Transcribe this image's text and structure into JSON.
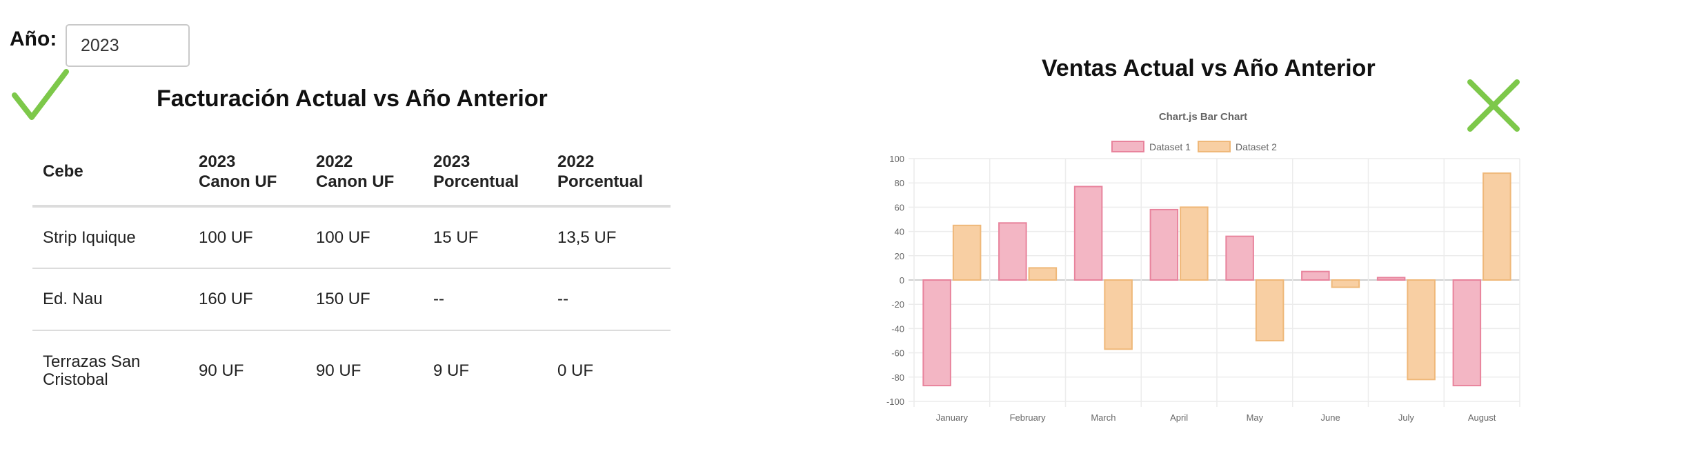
{
  "year_filter": {
    "label": "Año:",
    "value": "2023"
  },
  "left_panel": {
    "status_icon": "check-icon",
    "title": "Facturación Actual vs Año Anterior",
    "table": {
      "headers": [
        [
          "Cebe"
        ],
        [
          "2023",
          "Canon UF"
        ],
        [
          "2022",
          "Canon UF"
        ],
        [
          "2023",
          "Porcentual"
        ],
        [
          "2022",
          "Porcentual"
        ]
      ],
      "rows": [
        {
          "cebe": [
            "Strip Iquique"
          ],
          "c2023": "100 UF",
          "c2022": "100 UF",
          "p2023": "15 UF",
          "p2022": "13,5 UF"
        },
        {
          "cebe": [
            "Ed. Nau"
          ],
          "c2023": "160 UF",
          "c2022": "150 UF",
          "p2023": "--",
          "p2022": "--"
        },
        {
          "cebe": [
            "Terrazas San",
            "Cristobal"
          ],
          "c2023": "90 UF",
          "c2022": "90 UF",
          "p2023": "9 UF",
          "p2022": "0 UF"
        }
      ]
    }
  },
  "right_panel": {
    "status_icon": "x-icon",
    "title": "Ventas Actual vs Año Anterior"
  },
  "colors": {
    "check": "#7dc84a",
    "x": "#7dc84a",
    "dataset1_fill": "#f3b6c4",
    "dataset1_stroke": "#e8839c",
    "dataset2_fill": "#f8cfa3",
    "dataset2_stroke": "#efb879"
  },
  "chart_data": {
    "type": "bar",
    "title": "Chart.js Bar Chart",
    "categories": [
      "January",
      "February",
      "March",
      "April",
      "May",
      "June",
      "July",
      "August"
    ],
    "series": [
      {
        "name": "Dataset 1",
        "values": [
          -87,
          47,
          77,
          58,
          36,
          7,
          2,
          -87
        ]
      },
      {
        "name": "Dataset 2",
        "values": [
          45,
          10,
          -57,
          60,
          -50,
          -6,
          -82,
          88
        ]
      }
    ],
    "ylim": [
      -100,
      100
    ],
    "yticks": [
      100,
      80,
      60,
      40,
      20,
      0,
      -20,
      -40,
      -60,
      -80,
      -100
    ],
    "legend_position": "top",
    "grid": true
  }
}
